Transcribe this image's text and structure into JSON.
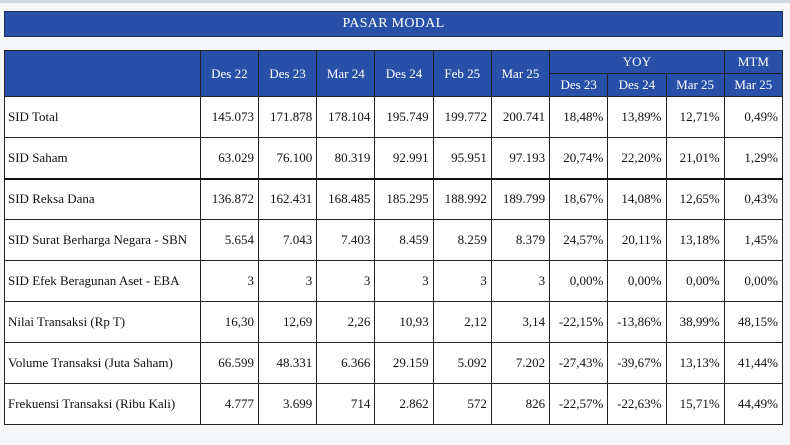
{
  "title": "PASAR MODAL",
  "headers": {
    "periods": [
      "Des 22",
      "Des 23",
      "Mar 24",
      "Des 24",
      "Feb 25",
      "Mar 25"
    ],
    "yoy_label": "YOY",
    "yoy_periods": [
      "Des 23",
      "Des 24",
      "Mar 25"
    ],
    "mtm_label": "MTM",
    "mtm_period": "Mar 25"
  },
  "rows": [
    {
      "label": "SID Total",
      "values": [
        "145.073",
        "171.878",
        "178.104",
        "195.749",
        "199.772",
        "200.741"
      ],
      "yoy": [
        "18,48%",
        "13,89%",
        "12,71%"
      ],
      "mtm": "0,49%"
    },
    {
      "label": "SID Saham",
      "values": [
        "63.029",
        "76.100",
        "80.319",
        "92.991",
        "95.951",
        "97.193"
      ],
      "yoy": [
        "20,74%",
        "22,20%",
        "21,01%"
      ],
      "mtm": "1,29%"
    },
    {
      "label": "SID Reksa Dana",
      "values": [
        "136.872",
        "162.431",
        "168.485",
        "185.295",
        "188.992",
        "189.799"
      ],
      "yoy": [
        "18,67%",
        "14,08%",
        "12,65%"
      ],
      "mtm": "0,43%"
    },
    {
      "label": "SID Surat Berharga Negara - SBN",
      "values": [
        "5.654",
        "7.043",
        "7.403",
        "8.459",
        "8.259",
        "8.379"
      ],
      "yoy": [
        "24,57%",
        "20,11%",
        "13,18%"
      ],
      "mtm": "1,45%"
    },
    {
      "label": "SID Efek Beragunan Aset - EBA",
      "values": [
        "3",
        "3",
        "3",
        "3",
        "3",
        "3"
      ],
      "yoy": [
        "0,00%",
        "0,00%",
        "0,00%"
      ],
      "mtm": "0,00%"
    },
    {
      "label": "Nilai Transaksi (Rp T)",
      "values": [
        "16,30",
        "12,69",
        "2,26",
        "10,93",
        "2,12",
        "3,14"
      ],
      "yoy": [
        "-22,15%",
        "-13,86%",
        "38,99%"
      ],
      "mtm": "48,15%"
    },
    {
      "label": "Volume Transaksi (Juta Saham)",
      "values": [
        "66.599",
        "48.331",
        "6.366",
        "29.159",
        "5.092",
        "7.202"
      ],
      "yoy": [
        "-27,43%",
        "-39,67%",
        "13,13%"
      ],
      "mtm": "41,44%"
    },
    {
      "label": "Frekuensi Transaksi (Ribu Kali)",
      "values": [
        "4.777",
        "3.699",
        "714",
        "2.862",
        "572",
        "826"
      ],
      "yoy": [
        "-22,57%",
        "-22,63%",
        "15,71%"
      ],
      "mtm": "44,49%"
    }
  ]
}
